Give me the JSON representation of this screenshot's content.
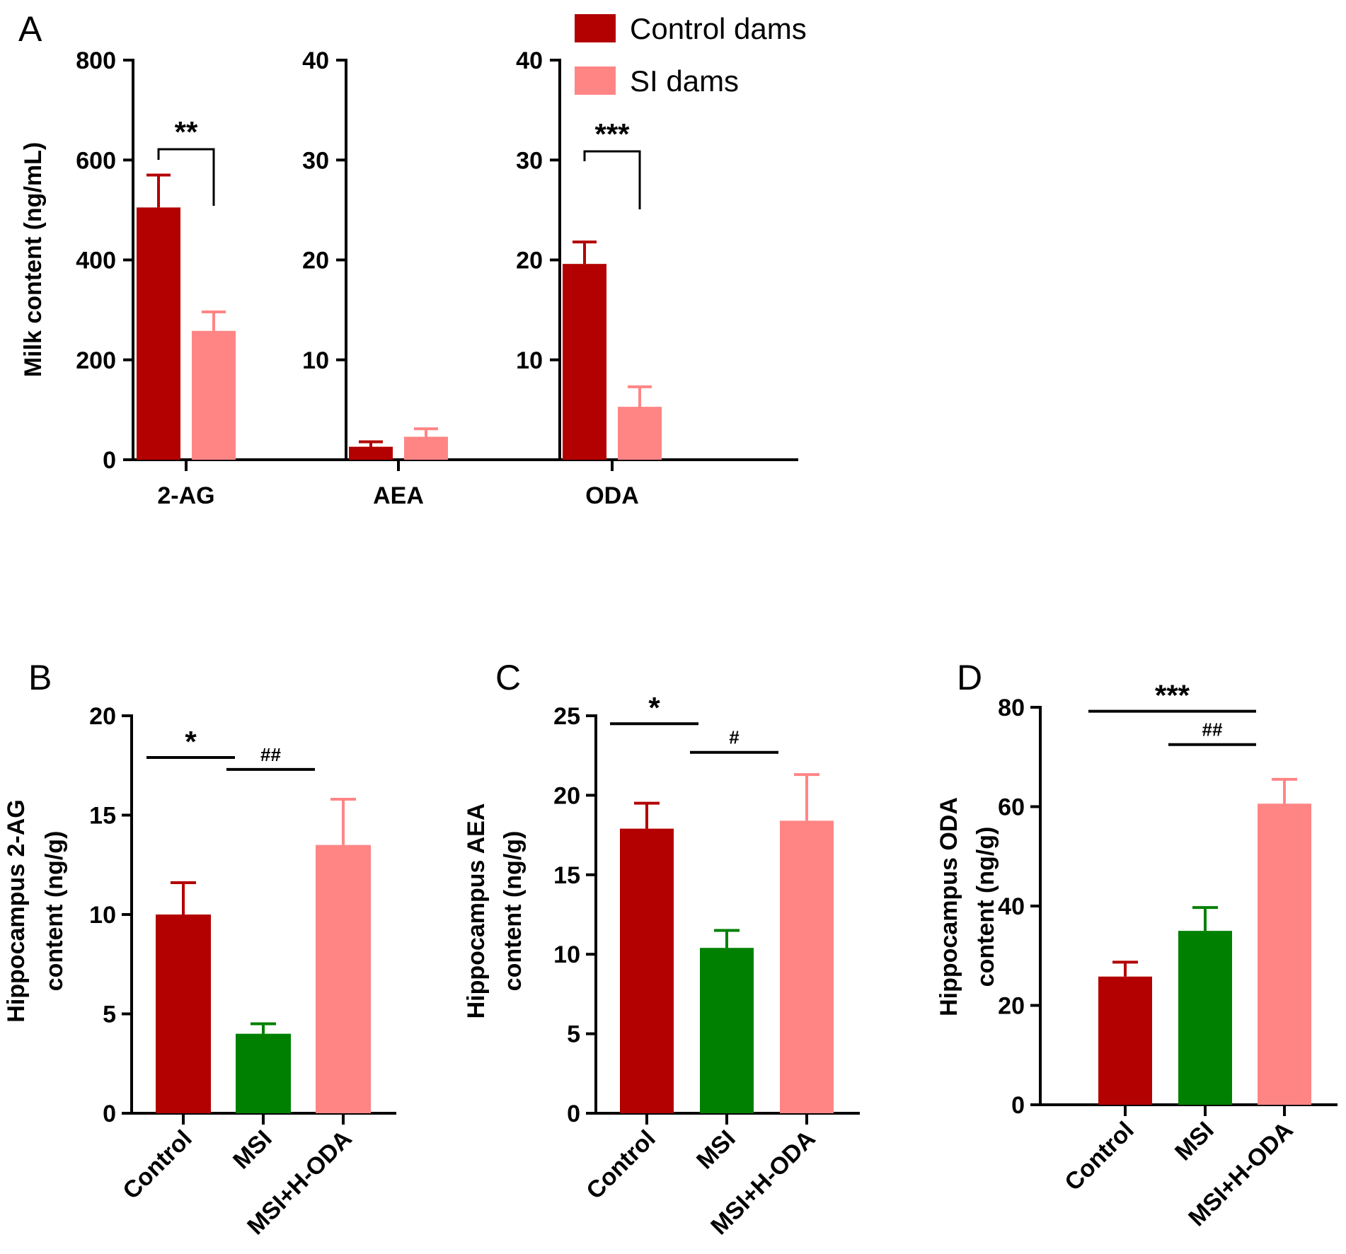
{
  "colors": {
    "control": "#B30000",
    "si": "#FF8585",
    "msi": "#008000",
    "axis": "#000000"
  },
  "chart_data": [
    {
      "panel": "A",
      "type": "bar",
      "ylabel": "Milk content (ng/mL)",
      "legend": {
        "placement": "top-right",
        "entries": [
          {
            "name": "Control dams",
            "color": "#B30000"
          },
          {
            "name": "SI dams",
            "color": "#FF8585"
          }
        ]
      },
      "groups": [
        {
          "category": "2-AG",
          "ylim": [
            0,
            800
          ],
          "ticks": [
            "0",
            "200",
            "400",
            "600",
            "800"
          ],
          "values": [
            505,
            258
          ],
          "errors": [
            65,
            38
          ],
          "significance": "**"
        },
        {
          "category": "AEA",
          "ylim": [
            0,
            40
          ],
          "ticks": [
            "10",
            "20",
            "30",
            "40"
          ],
          "values": [
            1.3,
            2.3
          ],
          "errors": [
            0.5,
            0.8
          ],
          "significance": ""
        },
        {
          "category": "ODA",
          "ylim": [
            0,
            40
          ],
          "ticks": [
            "10",
            "20",
            "30",
            "40"
          ],
          "values": [
            19.6,
            5.3
          ],
          "errors": [
            2.2,
            2.0
          ],
          "significance": "***"
        }
      ]
    },
    {
      "panel": "B",
      "type": "bar",
      "ylabel_lines": [
        "Hippocampus 2-AG",
        "content (ng/g)"
      ],
      "categories": [
        "Control",
        "MSI",
        "MSI+H-ODA"
      ],
      "values": [
        10.0,
        4.0,
        13.5
      ],
      "errors": [
        1.6,
        0.5,
        2.3
      ],
      "colors": [
        "#B30000",
        "#008000",
        "#FF8585"
      ],
      "ylim": [
        0,
        20
      ],
      "ticks": [
        "0",
        "5",
        "10",
        "15",
        "20"
      ],
      "significance": [
        {
          "from": 0,
          "to": 1,
          "label": "*",
          "level": 17.9
        },
        {
          "from": 1,
          "to": 2,
          "label": "##",
          "level": 17.3
        }
      ]
    },
    {
      "panel": "C",
      "type": "bar",
      "ylabel_lines": [
        "Hippocampus AEA",
        "content (ng/g)"
      ],
      "categories": [
        "Control",
        "MSI",
        "MSI+H-ODA"
      ],
      "values": [
        17.9,
        10.4,
        18.4
      ],
      "errors": [
        1.6,
        1.1,
        2.9
      ],
      "colors": [
        "#B30000",
        "#008000",
        "#FF8585"
      ],
      "ylim": [
        0,
        25
      ],
      "ticks": [
        "0",
        "5",
        "10",
        "15",
        "20",
        "25"
      ],
      "significance": [
        {
          "from": 0,
          "to": 1,
          "label": "*",
          "level": 24.5
        },
        {
          "from": 1,
          "to": 2,
          "label": "#",
          "level": 22.7
        }
      ]
    },
    {
      "panel": "D",
      "type": "bar",
      "ylabel_lines": [
        "Hippocampus ODA",
        "content (ng/g)"
      ],
      "categories": [
        "Control",
        "MSI",
        "MSI+H-ODA"
      ],
      "values": [
        25.8,
        35.0,
        60.6
      ],
      "errors": [
        2.9,
        4.7,
        4.9
      ],
      "colors": [
        "#B30000",
        "#008000",
        "#FF8585"
      ],
      "ylim": [
        0,
        80
      ],
      "ticks": [
        "0",
        "20",
        "40",
        "60",
        "80"
      ],
      "significance": [
        {
          "from": 0,
          "to": 2,
          "label": "***",
          "level": 79.2
        },
        {
          "from": 1,
          "to": 2,
          "label": "##",
          "level": 72.5
        }
      ]
    }
  ]
}
